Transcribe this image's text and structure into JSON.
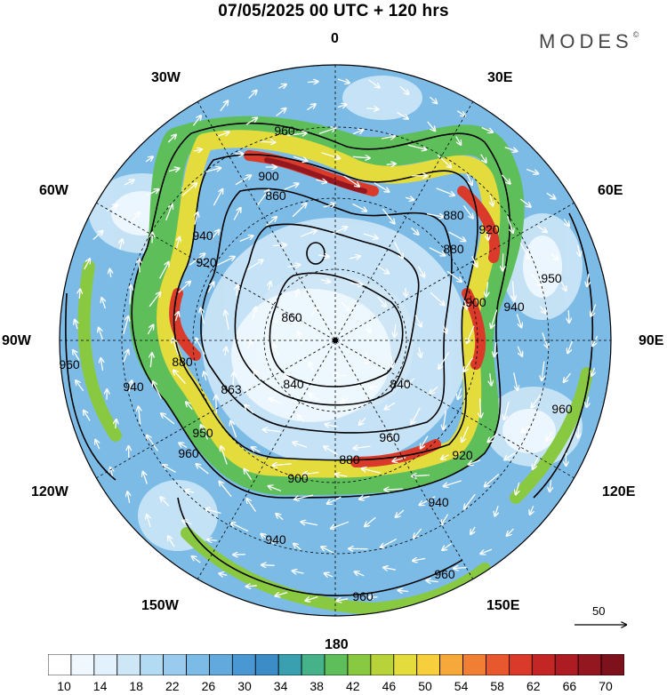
{
  "title": "07/05/2025  00 UTC  + 120 hrs",
  "brand": {
    "name": "MODES",
    "mark": "©"
  },
  "map": {
    "projection": "south polar stereographic",
    "longitude_labels": {
      "top": "0",
      "top_right": "30E",
      "right_upper": "60E",
      "right": "90E",
      "right_lower": "120E",
      "bottom_right": "150E",
      "bottom": "180",
      "bottom_left": "150W",
      "left_lower": "120W",
      "left": "90W",
      "left_upper": "60W",
      "top_left": "30W"
    },
    "contour_labels": [
      "960",
      "900",
      "860",
      "880",
      "920",
      "940",
      "920",
      "880",
      "950",
      "900",
      "940",
      "860",
      "960",
      "940",
      "880",
      "840",
      "863",
      "840",
      "950",
      "960",
      "900",
      "880",
      "920",
      "940",
      "960",
      "940",
      "960",
      "960",
      "960"
    ],
    "vector_reference": {
      "value": "50"
    },
    "colors": {
      "land": "#e9e9e9",
      "contour": "#000000",
      "vector": "#ffffff"
    }
  },
  "colorbar": {
    "tick_labels": [
      "10",
      "14",
      "18",
      "22",
      "26",
      "30",
      "34",
      "38",
      "42",
      "46",
      "50",
      "54",
      "58",
      "62",
      "66",
      "70"
    ],
    "colors": [
      "#ffffff",
      "#f0f8ff",
      "#e2f1fb",
      "#cde7f7",
      "#b3daf3",
      "#98cbee",
      "#7dbbe7",
      "#62a9dd",
      "#4a98d3",
      "#3c8cc7",
      "#3a9fae",
      "#45b28a",
      "#5ebf5a",
      "#89c942",
      "#b8d23a",
      "#e3dc3c",
      "#f7cf3c",
      "#f6a83b",
      "#f07f35",
      "#e8582e",
      "#d93a29",
      "#c42626",
      "#ac1c22",
      "#941720",
      "#7d121c"
    ]
  }
}
